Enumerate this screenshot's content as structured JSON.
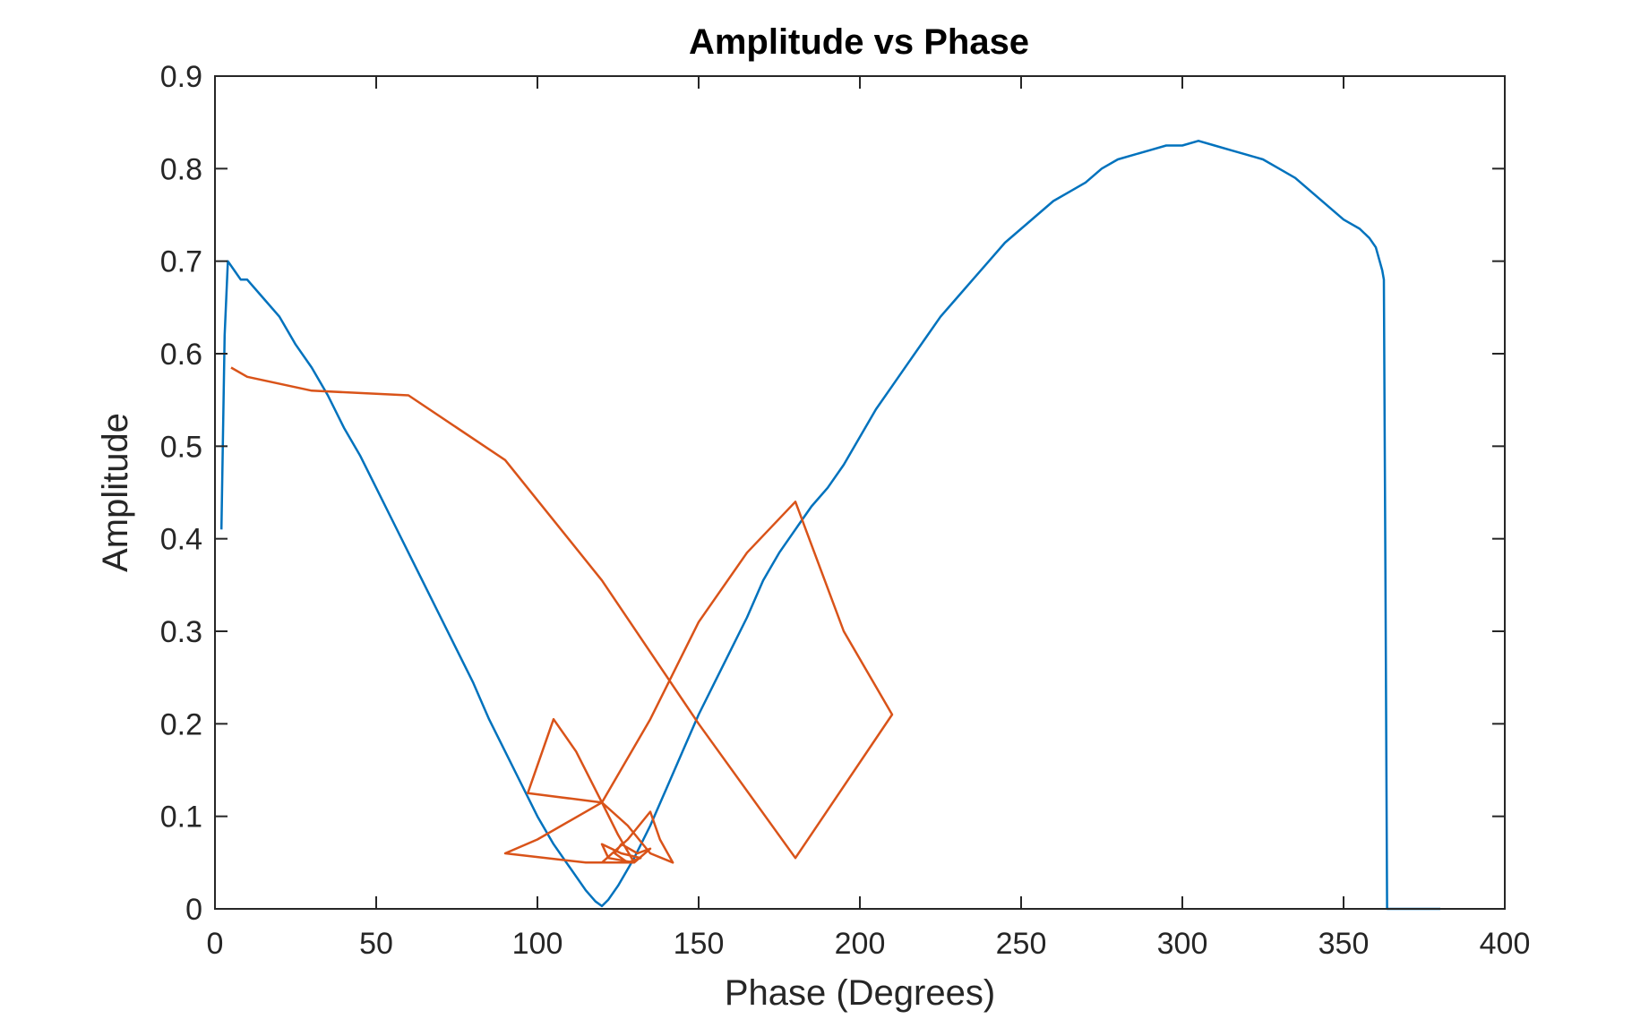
{
  "chart_data": {
    "type": "line",
    "title": "Amplitude vs Phase",
    "xlabel": "Phase (Degrees)",
    "ylabel": "Amplitude",
    "xlim": [
      0,
      400
    ],
    "ylim": [
      0,
      0.9
    ],
    "xticks": [
      "0",
      "50",
      "100",
      "150",
      "200",
      "250",
      "300",
      "350",
      "400"
    ],
    "yticks": [
      "0",
      "0.1",
      "0.2",
      "0.3",
      "0.4",
      "0.5",
      "0.6",
      "0.7",
      "0.8",
      "0.9"
    ],
    "grid": false,
    "series": [
      {
        "color": "#0072BD",
        "points": [
          [
            2,
            0.41
          ],
          [
            3,
            0.62
          ],
          [
            4,
            0.7
          ],
          [
            6,
            0.69
          ],
          [
            8,
            0.68
          ],
          [
            10,
            0.68
          ],
          [
            15,
            0.66
          ],
          [
            20,
            0.64
          ],
          [
            25,
            0.61
          ],
          [
            30,
            0.585
          ],
          [
            35,
            0.555
          ],
          [
            40,
            0.52
          ],
          [
            45,
            0.49
          ],
          [
            50,
            0.455
          ],
          [
            55,
            0.42
          ],
          [
            60,
            0.385
          ],
          [
            65,
            0.35
          ],
          [
            70,
            0.315
          ],
          [
            75,
            0.28
          ],
          [
            80,
            0.245
          ],
          [
            85,
            0.205
          ],
          [
            90,
            0.17
          ],
          [
            95,
            0.135
          ],
          [
            100,
            0.1
          ],
          [
            105,
            0.07
          ],
          [
            110,
            0.045
          ],
          [
            115,
            0.02
          ],
          [
            118,
            0.008
          ],
          [
            120,
            0.003
          ],
          [
            122,
            0.01
          ],
          [
            125,
            0.025
          ],
          [
            130,
            0.055
          ],
          [
            135,
            0.09
          ],
          [
            140,
            0.13
          ],
          [
            145,
            0.17
          ],
          [
            150,
            0.21
          ],
          [
            155,
            0.245
          ],
          [
            160,
            0.28
          ],
          [
            165,
            0.315
          ],
          [
            170,
            0.355
          ],
          [
            175,
            0.385
          ],
          [
            180,
            0.41
          ],
          [
            185,
            0.435
          ],
          [
            190,
            0.455
          ],
          [
            195,
            0.48
          ],
          [
            200,
            0.51
          ],
          [
            205,
            0.54
          ],
          [
            210,
            0.565
          ],
          [
            215,
            0.59
          ],
          [
            220,
            0.615
          ],
          [
            225,
            0.64
          ],
          [
            230,
            0.66
          ],
          [
            235,
            0.68
          ],
          [
            240,
            0.7
          ],
          [
            245,
            0.72
          ],
          [
            250,
            0.735
          ],
          [
            255,
            0.75
          ],
          [
            260,
            0.765
          ],
          [
            265,
            0.775
          ],
          [
            270,
            0.785
          ],
          [
            275,
            0.8
          ],
          [
            280,
            0.81
          ],
          [
            285,
            0.815
          ],
          [
            290,
            0.82
          ],
          [
            295,
            0.825
          ],
          [
            300,
            0.825
          ],
          [
            305,
            0.83
          ],
          [
            310,
            0.825
          ],
          [
            315,
            0.82
          ],
          [
            320,
            0.815
          ],
          [
            325,
            0.81
          ],
          [
            330,
            0.8
          ],
          [
            335,
            0.79
          ],
          [
            340,
            0.775
          ],
          [
            345,
            0.76
          ],
          [
            350,
            0.745
          ],
          [
            355,
            0.735
          ],
          [
            358,
            0.725
          ],
          [
            360,
            0.715
          ],
          [
            362,
            0.69
          ],
          [
            362.5,
            0.68
          ],
          [
            363,
            0.35
          ],
          [
            363.5,
            0
          ],
          [
            380,
            0
          ]
        ]
      },
      {
        "color": "#D95319",
        "points": [
          [
            5,
            0.585
          ],
          [
            10,
            0.575
          ],
          [
            30,
            0.56
          ],
          [
            60,
            0.555
          ],
          [
            90,
            0.485
          ],
          [
            120,
            0.355
          ],
          [
            150,
            0.2
          ],
          [
            180,
            0.055
          ],
          [
            210,
            0.21
          ],
          [
            195,
            0.3
          ],
          [
            180,
            0.44
          ],
          [
            165,
            0.385
          ],
          [
            150,
            0.31
          ],
          [
            135,
            0.205
          ],
          [
            120,
            0.115
          ],
          [
            97,
            0.125
          ],
          [
            105,
            0.205
          ],
          [
            112,
            0.17
          ],
          [
            120,
            0.115
          ],
          [
            128,
            0.09
          ],
          [
            135,
            0.06
          ],
          [
            142,
            0.05
          ],
          [
            138,
            0.075
          ],
          [
            135,
            0.105
          ],
          [
            128,
            0.075
          ],
          [
            120,
            0.05
          ],
          [
            115,
            0.05
          ],
          [
            90,
            0.06
          ],
          [
            100,
            0.075
          ],
          [
            120,
            0.115
          ],
          [
            125,
            0.08
          ],
          [
            130,
            0.05
          ],
          [
            122,
            0.055
          ],
          [
            120,
            0.07
          ],
          [
            126,
            0.06
          ],
          [
            132,
            0.055
          ],
          [
            128,
            0.05
          ],
          [
            124,
            0.06
          ],
          [
            126,
            0.07
          ],
          [
            131,
            0.06
          ],
          [
            135,
            0.065
          ],
          [
            130,
            0.05
          ],
          [
            118,
            0.05
          ]
        ]
      }
    ]
  }
}
